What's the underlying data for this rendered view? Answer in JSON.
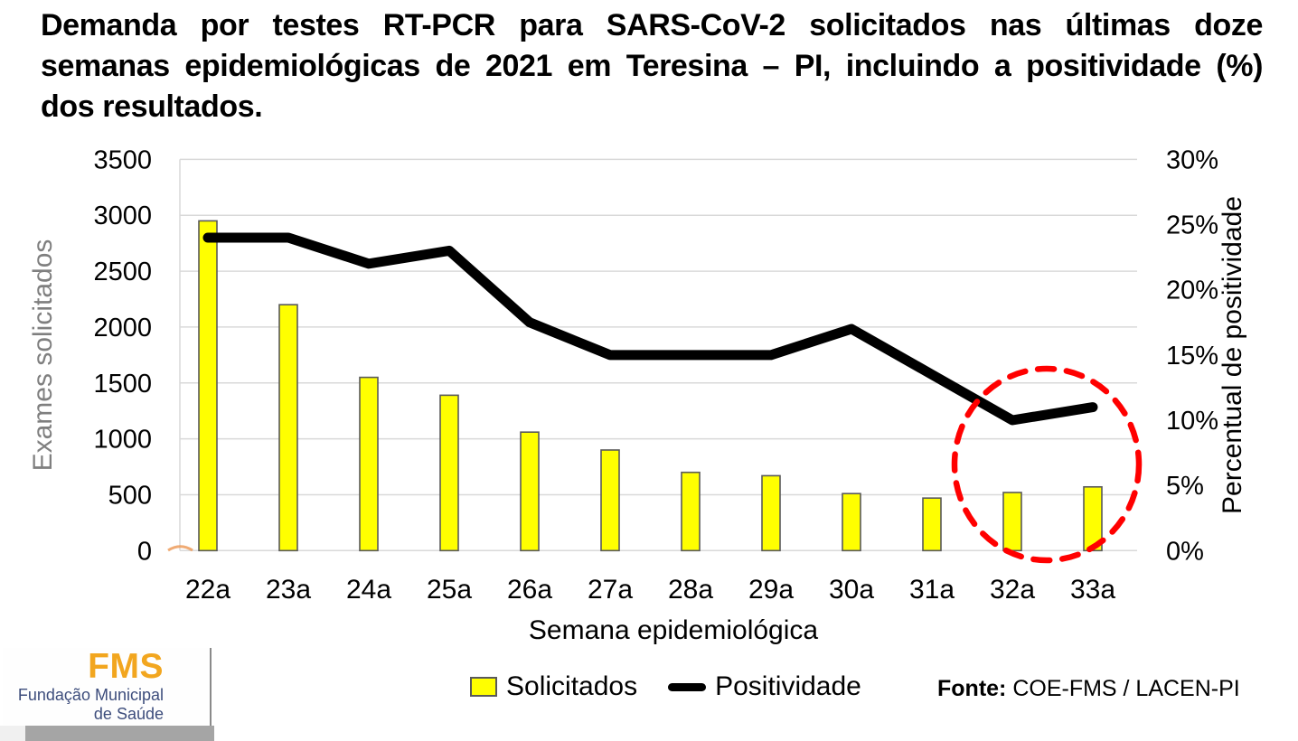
{
  "title": {
    "line1": "Demanda por testes RT-PCR para SARS-CoV-2 solicitados nas últimas doze",
    "line2": "semanas epidemiológicas de 2021 em Teresina – PI, incluindo a positividade (%)",
    "line3": "dos resultados."
  },
  "chart_data": {
    "type": "bar",
    "subtype": "combo-bar-line",
    "categories": [
      "22a",
      "23a",
      "24a",
      "25a",
      "26a",
      "27a",
      "28a",
      "29a",
      "30a",
      "31a",
      "32a",
      "33a"
    ],
    "series": [
      {
        "name": "Solicitados",
        "type": "bar",
        "axis": "left",
        "values": [
          2950,
          2200,
          1550,
          1390,
          1060,
          900,
          700,
          670,
          510,
          470,
          520,
          570
        ]
      },
      {
        "name": "Positividade",
        "type": "line",
        "axis": "right",
        "values": [
          24,
          24,
          22,
          23,
          17.5,
          15,
          15,
          15,
          17,
          13.5,
          10,
          11
        ]
      }
    ],
    "xlabel": "Semana epidemiológica",
    "ylabel_left": "Exames solicitados",
    "ylabel_right": "Percentual de positividade",
    "y_left_axis": {
      "min": 0,
      "max": 3500,
      "step": 500,
      "tick_labels": [
        "0",
        "500",
        "1000",
        "1500",
        "2000",
        "2500",
        "3000",
        "3500"
      ]
    },
    "y_right_axis": {
      "min": 0,
      "max": 30,
      "step": 5,
      "tick_labels": [
        "0%",
        "5%",
        "10%",
        "15%",
        "20%",
        "25%",
        "30%"
      ]
    },
    "grid": true,
    "legend_position": "bottom",
    "annotation": {
      "type": "dashed-ellipse",
      "around": [
        "32a",
        "33a"
      ],
      "color": "#FF0000"
    }
  },
  "legend": {
    "items": [
      {
        "label": "Solicitados",
        "swatch": "yellow-square"
      },
      {
        "label": "Positividade",
        "swatch": "black-line"
      }
    ]
  },
  "source": {
    "prefix": "Fonte:",
    "text": " COE-FMS / LACEN-PI"
  },
  "logo": {
    "acronym": "FMS",
    "line1": "Fundação Municipal",
    "line2": "de Saúde"
  },
  "colors": {
    "bar_fill": "#FFFF00",
    "bar_border": "#595959",
    "line": "#000000",
    "annotation_red": "#FF0000",
    "grid": "#D9D9D9",
    "left_axis_label": "#7F7F7F",
    "tick_text": "#000000",
    "artifact_orange": "#ED9C5C",
    "logo_orange": "#F2A61F",
    "logo_navy": "#3D4D7C",
    "footer_bar": "#A5A5A5"
  }
}
